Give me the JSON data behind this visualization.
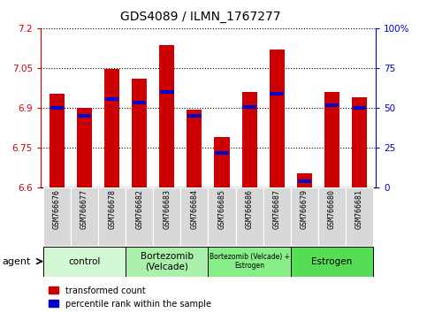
{
  "title": "GDS4089 / ILMN_1767277",
  "samples": [
    "GSM766676",
    "GSM766677",
    "GSM766678",
    "GSM766682",
    "GSM766683",
    "GSM766684",
    "GSM766685",
    "GSM766686",
    "GSM766687",
    "GSM766679",
    "GSM766680",
    "GSM766681"
  ],
  "red_values": [
    6.955,
    6.9,
    7.045,
    7.01,
    7.135,
    6.895,
    6.79,
    6.96,
    7.12,
    6.655,
    6.96,
    6.94
  ],
  "blue_values": [
    6.9,
    6.87,
    6.935,
    6.92,
    6.96,
    6.87,
    6.73,
    6.905,
    6.955,
    6.625,
    6.91,
    6.9
  ],
  "ymin": 6.6,
  "ymax": 7.2,
  "yticks_left": [
    6.6,
    6.75,
    6.9,
    7.05,
    7.2
  ],
  "yticks_right": [
    0,
    25,
    50,
    75,
    100
  ],
  "ytick_labels_left": [
    "6.6",
    "6.75",
    "6.9",
    "7.05",
    "7.2"
  ],
  "ytick_labels_right": [
    "0",
    "25",
    "50",
    "75",
    "100%"
  ],
  "groups": [
    {
      "label": "control",
      "start": 0,
      "end": 3,
      "color": "#d4f7d4"
    },
    {
      "label": "Bortezomib\n(Velcade)",
      "start": 3,
      "end": 6,
      "color": "#aaf0aa"
    },
    {
      "label": "Bortezomib (Velcade) +\nEstrogen",
      "start": 6,
      "end": 9,
      "color": "#88ee88"
    },
    {
      "label": "Estrogen",
      "start": 9,
      "end": 12,
      "color": "#55dd55"
    }
  ],
  "bar_color": "#cc0000",
  "marker_color": "#0000cc",
  "bar_width": 0.55,
  "bar_base": 6.6,
  "legend_red": "transformed count",
  "legend_blue": "percentile rank within the sample",
  "left_axis_color": "#cc0000",
  "right_axis_color": "#0000cc",
  "sample_bg_color": "#d8d8d8"
}
